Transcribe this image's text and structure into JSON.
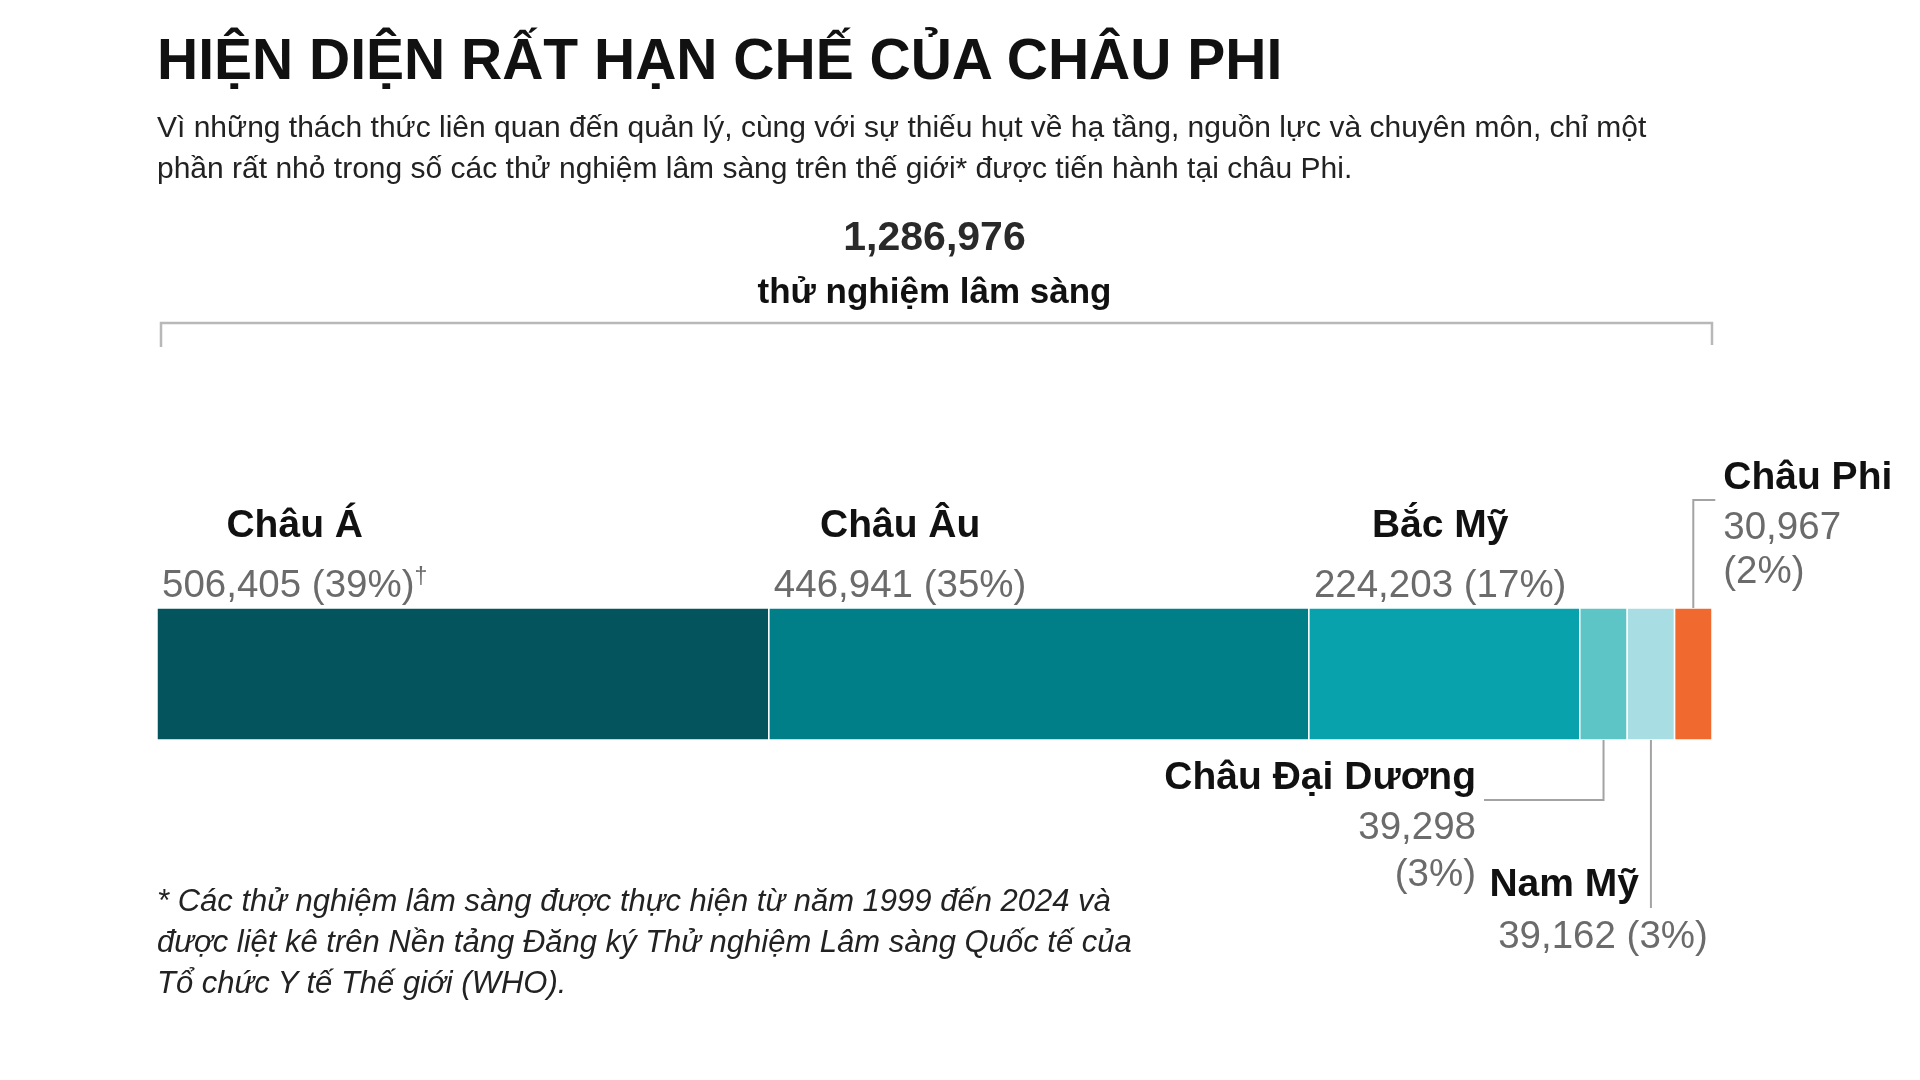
{
  "chart_data": {
    "type": "bar",
    "orientation": "horizontal",
    "stacked": true,
    "title": "HIỆN DIỆN RẤT HẠN CHẾ CỦA CHÂU PHI",
    "subtitle": "Vì những thách thức liên quan đến quản lý, cùng với sự thiếu hụt về hạ tầng, nguồn lực và chuyên môn, chỉ một phần rất nhỏ trong số các thử nghiệm lâm sàng trên thế giới* được tiến hành tại châu Phi.",
    "categories": [
      null
    ],
    "series": [
      {
        "name": "Châu Á",
        "color": "#03545c",
        "values": [
          506405
        ],
        "value_labels": [
          "506,405 (39%)$^{†}$"
        ]
      },
      {
        "name": "Châu Âu",
        "color": "#017f88",
        "values": [
          446941
        ],
        "value_labels": [
          "446,941 (35%)"
        ]
      },
      {
        "name": "Bắc Mỹ",
        "color": "#07a2ac",
        "values": [
          224203
        ],
        "value_labels": [
          "224,203 (17%)"
        ]
      },
      {
        "name": "Châu Đại Dương",
        "color": "#5ec5c7",
        "values": [
          39298
        ],
        "value_labels": [
          "39,298 (3%)"
        ]
      },
      {
        "name": "Nam Mỹ",
        "color": "#a8dde4",
        "values": [
          39162
        ],
        "value_labels": [
          "39,162 (3%)"
        ]
      },
      {
        "name": "Châu Phi",
        "color": "#f06a30",
        "values": [
          30967
        ],
        "value_labels": [
          "30,967 (2%)"
        ]
      }
    ],
    "annotations": [
      "1,286,976",
      "thử nghiệm lâm sàng",
      "* Các thử nghiệm lâm sàng được thực hiện từ năm 1999 đến 2024 và được liệt kê trên Nền tảng Đăng ký Thử nghiệm Lâm sàng Quốc tế của Tổ chức Y tế Thế giới (WHO)."
    ],
    "tick_labels": false
  }
}
